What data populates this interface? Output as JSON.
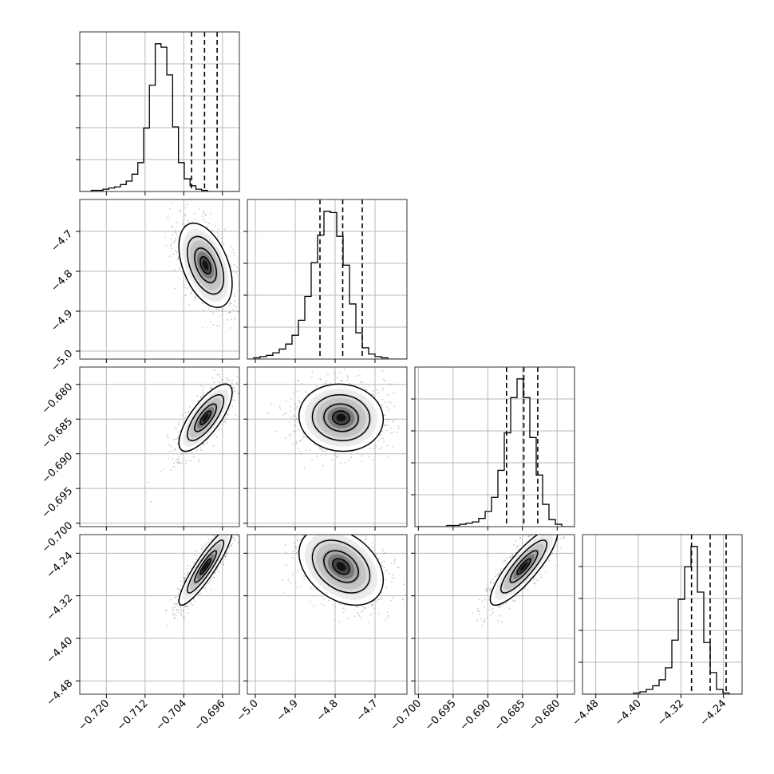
{
  "chart_data": {
    "type": "corner",
    "parameters": [
      {
        "index": 0,
        "range": [
          -0.7255,
          -0.6925
        ],
        "ticks": [
          "−0.720",
          "−0.712",
          "−0.704",
          "−0.696"
        ],
        "tick_values": [
          -0.72,
          -0.712,
          -0.704,
          -0.696
        ],
        "quantiles": [
          -0.7024,
          -0.6997,
          -0.6971
        ]
      },
      {
        "index": 1,
        "range": [
          -5.02,
          -4.62
        ],
        "ticks": [
          "−5.0",
          "−4.9",
          "−4.8",
          "−4.7"
        ],
        "tick_values": [
          -5.0,
          -4.9,
          -4.8,
          -4.7
        ],
        "quantiles": [
          -4.838,
          -4.781,
          -4.732
        ]
      },
      {
        "index": 2,
        "range": [
          -0.7005,
          -0.6775
        ],
        "ticks": [
          "−0.700",
          "−0.695",
          "−0.690",
          "−0.685",
          "−0.680"
        ],
        "tick_values": [
          -0.7,
          -0.695,
          -0.69,
          -0.685,
          -0.68
        ],
        "quantiles": [
          -0.6873,
          -0.6848,
          -0.6828
        ]
      },
      {
        "index": 3,
        "range": [
          -4.505,
          -4.205
        ],
        "ticks": [
          "−4.48",
          "−4.40",
          "−4.32",
          "−4.24"
        ],
        "tick_values": [
          -4.48,
          -4.4,
          -4.32,
          -4.24
        ],
        "quantiles": [
          -4.3,
          -4.265,
          -4.235
        ]
      }
    ],
    "histograms": [
      {
        "param": 0,
        "edges_start": -0.7255,
        "bin_width": 0.0012,
        "counts": [
          0,
          0,
          1,
          1,
          2,
          3,
          4,
          6,
          9,
          15,
          25,
          55,
          92,
          128,
          125,
          101,
          56,
          25,
          11,
          5,
          2,
          1,
          0,
          0,
          0,
          0,
          0,
          0
        ]
      },
      {
        "param": 1,
        "edges_start": -5.02,
        "bin_width": 0.016,
        "counts": [
          0,
          1,
          2,
          3,
          5,
          8,
          12,
          19,
          31,
          50,
          77,
          99,
          118,
          117,
          98,
          75,
          44,
          21,
          9,
          4,
          2,
          1,
          0,
          0,
          0
        ]
      },
      {
        "param": 2,
        "edges_start": -0.7005,
        "bin_width": 0.00092,
        "counts": [
          0,
          0,
          0,
          0,
          0,
          1,
          1,
          2,
          3,
          4,
          7,
          13,
          25,
          48,
          80,
          110,
          126,
          110,
          76,
          44,
          19,
          6,
          2,
          0,
          0
        ]
      },
      {
        "param": 3,
        "edges_start": -4.505,
        "bin_width": 0.012,
        "counts": [
          0,
          0,
          0,
          0,
          0,
          0,
          0,
          0,
          1,
          2,
          4,
          7,
          12,
          22,
          45,
          79,
          106,
          123,
          85,
          43,
          18,
          4,
          1,
          0,
          0
        ]
      }
    ],
    "pairs": [
      {
        "x_param": 0,
        "y_param": 1,
        "x_mean": -0.6995,
        "y_mean": -4.785,
        "x_sd": 0.0025,
        "y_sd": 0.048,
        "corr": -0.45
      },
      {
        "x_param": 0,
        "y_param": 2,
        "x_mean": -0.6995,
        "y_mean": -0.6848,
        "x_sd": 0.0025,
        "y_sd": 0.0022,
        "corr": 0.75
      },
      {
        "x_param": 1,
        "y_param": 2,
        "x_mean": -4.785,
        "y_mean": -0.6848,
        "x_sd": 0.048,
        "y_sd": 0.0022,
        "corr": -0.05
      },
      {
        "x_param": 0,
        "y_param": 3,
        "x_mean": -0.6995,
        "y_mean": -4.265,
        "x_sd": 0.0025,
        "y_sd": 0.033,
        "corr": 0.9
      },
      {
        "x_param": 1,
        "y_param": 3,
        "x_mean": -4.785,
        "y_mean": -4.265,
        "x_sd": 0.048,
        "y_sd": 0.033,
        "corr": -0.35
      },
      {
        "x_param": 2,
        "y_param": 3,
        "x_mean": -0.6848,
        "y_mean": -4.265,
        "x_sd": 0.0022,
        "y_sd": 0.033,
        "corr": 0.85
      }
    ],
    "grid": true,
    "title": "",
    "xlabel": "",
    "ylabel": ""
  }
}
